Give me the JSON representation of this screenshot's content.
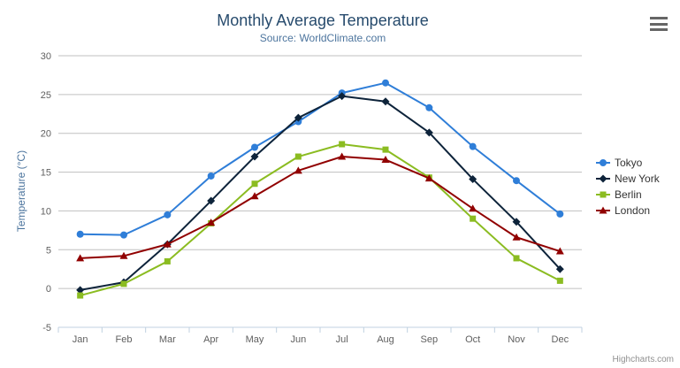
{
  "header": {
    "title": "Monthly Average Temperature",
    "subtitle": "Source: WorldClimate.com"
  },
  "toolbar": {
    "export_menu_icon": "hamburger-icon"
  },
  "credits": {
    "label": "Highcharts.com"
  },
  "palette": {
    "title_color": "#274b6d",
    "subtitle_color": "#4d759e",
    "axis_title_color": "#4d759e",
    "axis_label_color": "#606060",
    "legend_text_color": "#333333",
    "grid_line_color": "#c0c0c0",
    "x_axis_line_color": "#c0d0e0",
    "credits_color": "#909090"
  },
  "chart_data": {
    "type": "line",
    "title": "Monthly Average Temperature",
    "subtitle": "Source: WorldClimate.com",
    "xlabel": "",
    "ylabel": "Temperature (°C)",
    "ylim": [
      -5,
      30
    ],
    "ytick_interval": 5,
    "grid": true,
    "legend_position": "right",
    "categories": [
      "Jan",
      "Feb",
      "Mar",
      "Apr",
      "May",
      "Jun",
      "Jul",
      "Aug",
      "Sep",
      "Oct",
      "Nov",
      "Dec"
    ],
    "series": [
      {
        "name": "Tokyo",
        "color": "#2f7ed8",
        "marker": "circle",
        "values": [
          7.0,
          6.9,
          9.5,
          14.5,
          18.2,
          21.5,
          25.2,
          26.5,
          23.3,
          18.3,
          13.9,
          9.6
        ]
      },
      {
        "name": "New York",
        "color": "#0d233a",
        "marker": "diamond",
        "values": [
          -0.2,
          0.8,
          5.7,
          11.3,
          17.0,
          22.0,
          24.8,
          24.1,
          20.1,
          14.1,
          8.6,
          2.5
        ]
      },
      {
        "name": "Berlin",
        "color": "#8bbc21",
        "marker": "square",
        "values": [
          -0.9,
          0.6,
          3.5,
          8.4,
          13.5,
          17.0,
          18.6,
          17.9,
          14.3,
          9.0,
          3.9,
          1.0
        ]
      },
      {
        "name": "London",
        "color": "#910000",
        "marker": "triangle",
        "values": [
          3.9,
          4.2,
          5.7,
          8.5,
          11.9,
          15.2,
          17.0,
          16.6,
          14.2,
          10.3,
          6.6,
          4.8
        ]
      }
    ]
  }
}
